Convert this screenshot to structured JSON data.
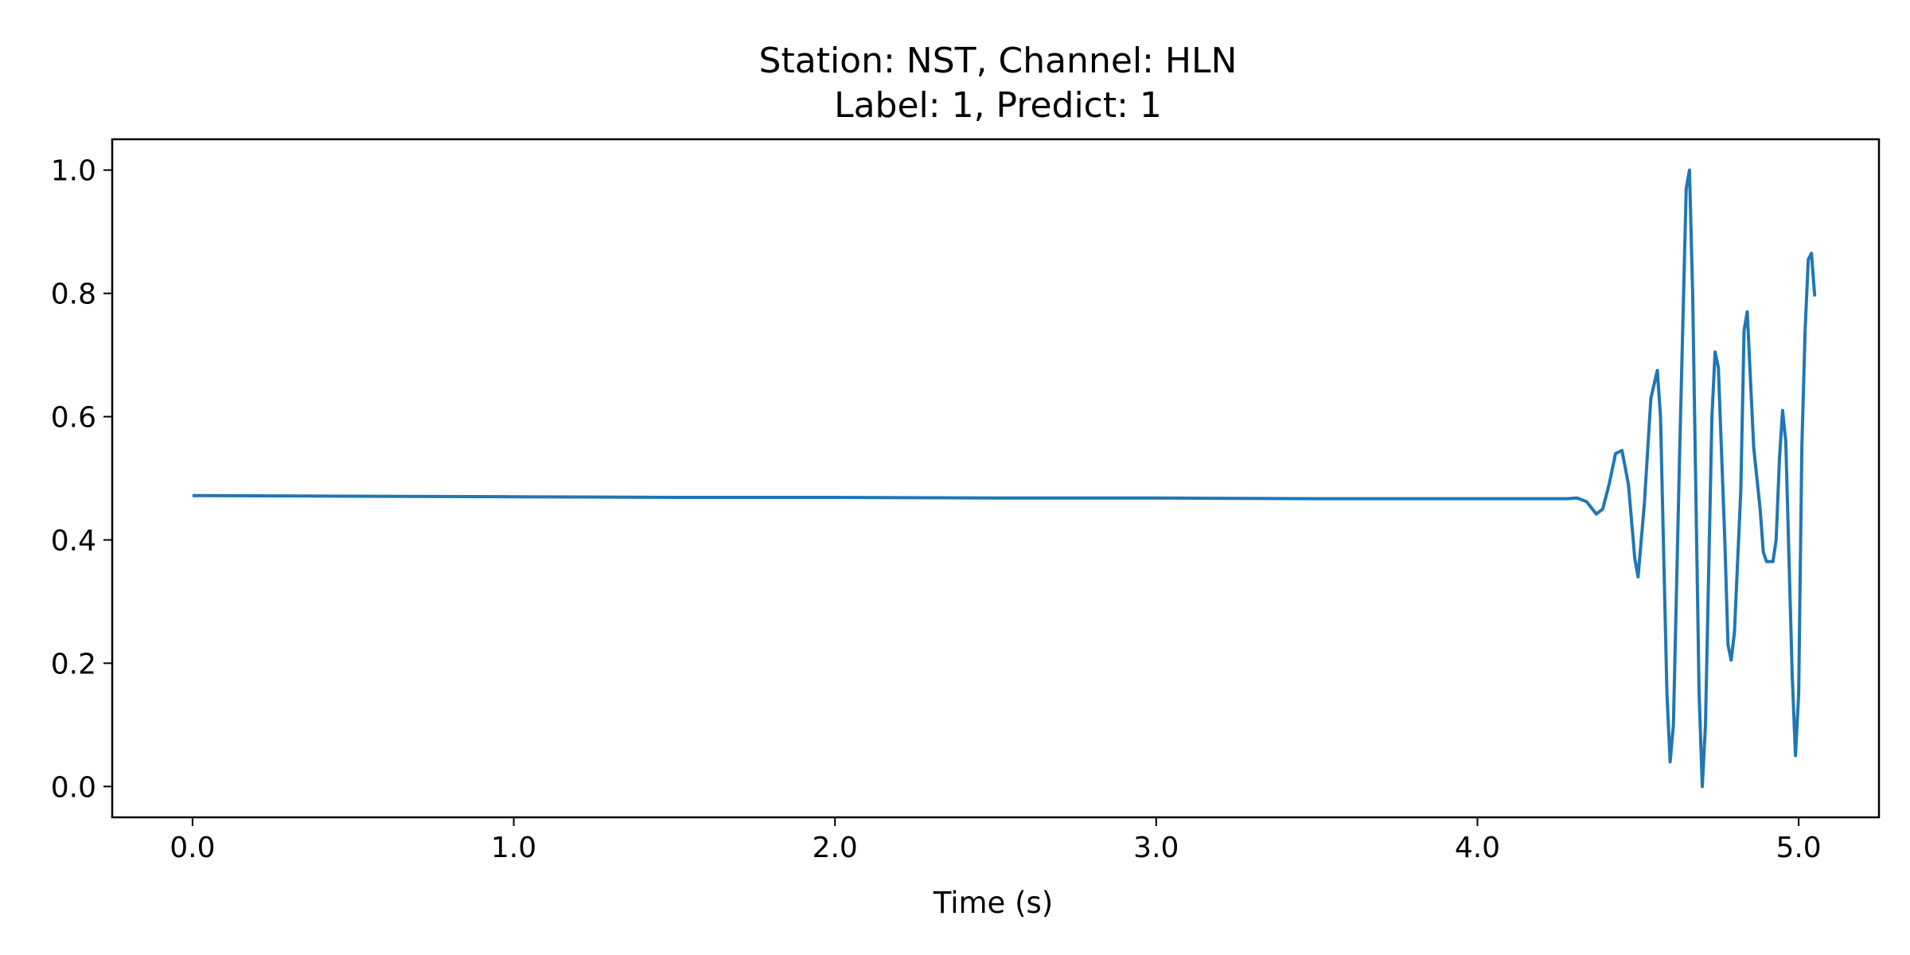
{
  "chart_data": {
    "type": "line",
    "title_lines": [
      "Station: NST, Channel: HLN",
      "Label: 1, Predict: 1"
    ],
    "xlabel": "Time (s)",
    "ylabel": "",
    "xlim": [
      -0.25,
      5.25
    ],
    "ylim": [
      -0.05,
      1.05
    ],
    "x_ticks": [
      0.0,
      1.0,
      2.0,
      3.0,
      4.0,
      5.0
    ],
    "x_tick_labels": [
      "0.0",
      "1.0",
      "2.0",
      "3.0",
      "4.0",
      "5.0"
    ],
    "y_ticks": [
      0.0,
      0.2,
      0.4,
      0.6,
      0.8,
      1.0
    ],
    "y_tick_labels": [
      "0.0",
      "0.2",
      "0.4",
      "0.6",
      "0.8",
      "1.0"
    ],
    "grid": false,
    "series": [
      {
        "color": "#1f77b4",
        "points": [
          [
            0.0,
            0.472
          ],
          [
            0.5,
            0.471
          ],
          [
            1.0,
            0.47
          ],
          [
            1.5,
            0.469
          ],
          [
            2.0,
            0.469
          ],
          [
            2.5,
            0.468
          ],
          [
            3.0,
            0.468
          ],
          [
            3.5,
            0.467
          ],
          [
            4.0,
            0.467
          ],
          [
            4.28,
            0.467
          ],
          [
            4.31,
            0.468
          ],
          [
            4.34,
            0.462
          ],
          [
            4.37,
            0.442
          ],
          [
            4.39,
            0.45
          ],
          [
            4.41,
            0.49
          ],
          [
            4.43,
            0.54
          ],
          [
            4.45,
            0.545
          ],
          [
            4.47,
            0.49
          ],
          [
            4.49,
            0.37
          ],
          [
            4.5,
            0.34
          ],
          [
            4.52,
            0.46
          ],
          [
            4.54,
            0.63
          ],
          [
            4.56,
            0.675
          ],
          [
            4.57,
            0.6
          ],
          [
            4.59,
            0.15
          ],
          [
            4.6,
            0.04
          ],
          [
            4.61,
            0.1
          ],
          [
            4.63,
            0.55
          ],
          [
            4.65,
            0.97
          ],
          [
            4.66,
            1.0
          ],
          [
            4.67,
            0.8
          ],
          [
            4.69,
            0.15
          ],
          [
            4.7,
            0.0
          ],
          [
            4.71,
            0.1
          ],
          [
            4.73,
            0.6
          ],
          [
            4.74,
            0.705
          ],
          [
            4.75,
            0.68
          ],
          [
            4.77,
            0.4
          ],
          [
            4.78,
            0.23
          ],
          [
            4.79,
            0.205
          ],
          [
            4.8,
            0.25
          ],
          [
            4.82,
            0.48
          ],
          [
            4.83,
            0.74
          ],
          [
            4.84,
            0.77
          ],
          [
            4.86,
            0.55
          ],
          [
            4.88,
            0.45
          ],
          [
            4.89,
            0.38
          ],
          [
            4.9,
            0.365
          ],
          [
            4.92,
            0.365
          ],
          [
            4.93,
            0.4
          ],
          [
            4.94,
            0.53
          ],
          [
            4.95,
            0.61
          ],
          [
            4.96,
            0.56
          ],
          [
            4.98,
            0.18
          ],
          [
            4.99,
            0.05
          ],
          [
            5.0,
            0.15
          ],
          [
            5.01,
            0.55
          ],
          [
            5.02,
            0.74
          ],
          [
            5.03,
            0.855
          ],
          [
            5.04,
            0.865
          ],
          [
            5.05,
            0.795
          ]
        ]
      }
    ]
  }
}
